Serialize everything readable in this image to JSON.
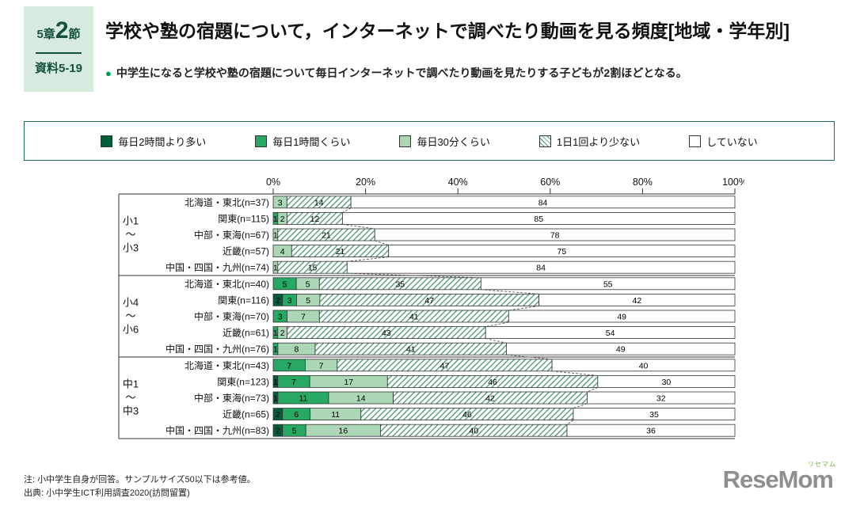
{
  "header": {
    "chapter_label": "5章",
    "chapter_number": "2",
    "section_label": "節",
    "doc_label": "資料5-19",
    "title": "学校や塾の宿題について，インターネットで調べたり動画を見る頻度[地域・学年別]",
    "summary": "中学生になると学校や塾の宿題について毎日インターネットで調べたり動画を見たりする子どもが2割ほどとなる。"
  },
  "legend": {
    "items": [
      {
        "label": "毎日2時間より多い",
        "color": "#005f38",
        "pattern": "solid"
      },
      {
        "label": "毎日1時間くらい",
        "color": "#27a863",
        "pattern": "solid"
      },
      {
        "label": "毎日30分くらい",
        "color": "#abd7b6",
        "pattern": "solid"
      },
      {
        "label": "1日1回より少ない",
        "color": "#4c9670",
        "pattern": "hatch"
      },
      {
        "label": "していない",
        "color": "#ffffff",
        "pattern": "solid"
      }
    ]
  },
  "chart_data": {
    "type": "bar",
    "orientation": "horizontal",
    "stacked": true,
    "title": "学校や塾の宿題について，インターネットで調べたり動画を見る頻度[地域・学年別]",
    "x_axis": {
      "ticks": [
        "0%",
        "20%",
        "40%",
        "60%",
        "80%",
        "100%"
      ],
      "range": [
        0,
        100
      ]
    },
    "series_names": [
      "毎日2時間より多い",
      "毎日1時間くらい",
      "毎日30分くらい",
      "1日1回より少ない",
      "していない"
    ],
    "groups": [
      {
        "label": "小1〜小3",
        "label_lines": [
          "小1",
          "〜",
          "小3"
        ],
        "rows": [
          {
            "label": "北海道・東北(n=37)",
            "values": [
              0,
              0,
              3,
              14,
              84
            ]
          },
          {
            "label": "関東(n=115)",
            "values": [
              0,
              1,
              2,
              12,
              85
            ]
          },
          {
            "label": "中部・東海(n=67)",
            "values": [
              0,
              0,
              1,
              21,
              78
            ]
          },
          {
            "label": "近畿(n=57)",
            "values": [
              0,
              0,
              4,
              21,
              75
            ]
          },
          {
            "label": "中国・四国・九州(n=74)",
            "values": [
              0,
              0,
              1,
              15,
              84
            ]
          }
        ]
      },
      {
        "label": "小4〜小6",
        "label_lines": [
          "小4",
          "〜",
          "小6"
        ],
        "rows": [
          {
            "label": "北海道・東北(n=40)",
            "values": [
              0,
              5,
              5,
              35,
              55
            ]
          },
          {
            "label": "関東(n=116)",
            "values": [
              2,
              3,
              5,
              47,
              42
            ]
          },
          {
            "label": "中部・東海(n=70)",
            "values": [
              0,
              3,
              7,
              41,
              49
            ]
          },
          {
            "label": "近畿(n=61)",
            "values": [
              0,
              1,
              2,
              43,
              54
            ]
          },
          {
            "label": "中国・四国・九州(n=76)",
            "values": [
              0,
              1,
              8,
              41,
              49
            ]
          }
        ]
      },
      {
        "label": "中1〜中3",
        "label_lines": [
          "中1",
          "〜",
          "中3"
        ],
        "rows": [
          {
            "label": "北海道・東北(n=43)",
            "values": [
              0,
              7,
              7,
              47,
              40
            ]
          },
          {
            "label": "関東(n=123)",
            "values": [
              1,
              7,
              17,
              46,
              30
            ]
          },
          {
            "label": "中部・東海(n=73)",
            "values": [
              1,
              11,
              14,
              42,
              32
            ]
          },
          {
            "label": "近畿(n=65)",
            "values": [
              2,
              6,
              11,
              46,
              35
            ]
          },
          {
            "label": "中国・四国・九州(n=83)",
            "values": [
              2,
              5,
              16,
              40,
              36
            ]
          }
        ]
      }
    ]
  },
  "footer": {
    "note1": "注: 小中学生自身が回答。サンプルサイズ50以下は参考値。",
    "note2": "出典: 小中学生ICT利用調査2020(訪問留置)"
  },
  "logo": {
    "text": "ReseMom",
    "sub": "リセマム"
  }
}
